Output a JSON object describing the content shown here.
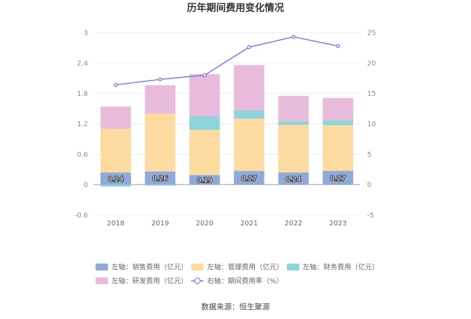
{
  "chart_data": {
    "type": "bar",
    "stacked": true,
    "title": "历年期间费用变化情况",
    "categories": [
      "2018",
      "2019",
      "2020",
      "2021",
      "2022",
      "2023"
    ],
    "left_axis": {
      "min": -0.6,
      "max": 3,
      "ticks": [
        "-0.6",
        "0",
        "0.6",
        "1.2",
        "1.8",
        "2.4",
        "3"
      ]
    },
    "right_axis": {
      "min": -5,
      "max": 25,
      "ticks": [
        "-5",
        "0",
        "5",
        "10",
        "15",
        "20",
        "25"
      ]
    },
    "series": [
      {
        "name": "左轴：销售费用（亿元）",
        "color": "#8fa9dc",
        "values": [
          0.24,
          0.26,
          0.19,
          0.27,
          0.24,
          0.27
        ],
        "labels": [
          "0.24",
          "0.26",
          "0.19",
          "0.27",
          "0.24",
          "0.27"
        ]
      },
      {
        "name": "左轴：管理费用（亿元）",
        "color": "#fddba0",
        "values": [
          0.86,
          1.14,
          0.89,
          1.03,
          0.94,
          0.9
        ]
      },
      {
        "name": "左轴：财务费用（亿元）",
        "color": "#8dd5d8",
        "values": [
          -0.04,
          -0.02,
          0.27,
          0.16,
          0.07,
          0.1
        ]
      },
      {
        "name": "左轴：研发费用（亿元）",
        "color": "#e8bbdc",
        "values": [
          0.44,
          0.56,
          0.83,
          0.9,
          0.5,
          0.44
        ]
      }
    ],
    "line": {
      "name": "右轴：期间费用率（%）",
      "color": "#7b7ee8",
      "values": [
        16.4,
        17.3,
        18.0,
        22.6,
        24.3,
        22.8
      ]
    }
  },
  "footer": {
    "source": "数据来源：恒生聚源"
  }
}
